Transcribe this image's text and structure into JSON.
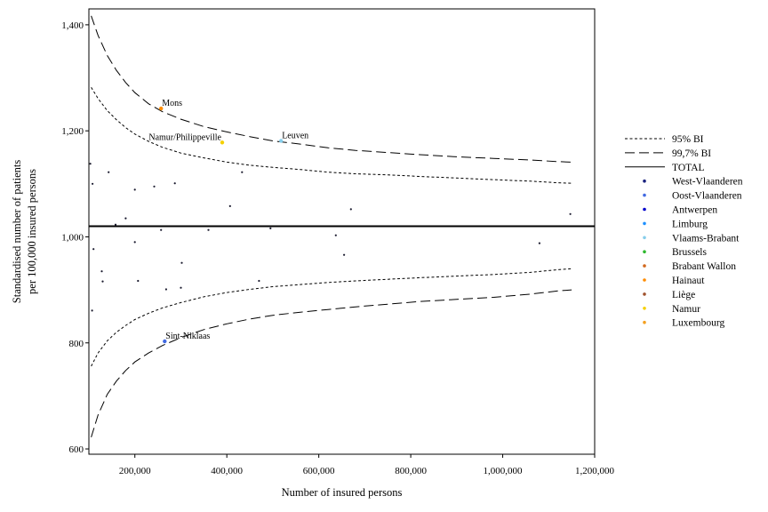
{
  "chart_data": {
    "type": "scatter",
    "title": "",
    "xlabel": "Number of insured persons",
    "ylabel_lines": [
      "Standardised number of patients",
      "per 100,000 insured persons"
    ],
    "xlim": [
      100000,
      1200000
    ],
    "ylim": [
      590,
      1430
    ],
    "x_ticks": [
      {
        "value": 200000,
        "label": "200,000"
      },
      {
        "value": 400000,
        "label": "400,000"
      },
      {
        "value": 600000,
        "label": "600,000"
      },
      {
        "value": 800000,
        "label": "800,000"
      },
      {
        "value": 1000000,
        "label": "1,000,000"
      },
      {
        "value": 1200000,
        "label": "1,200,000"
      }
    ],
    "y_ticks": [
      {
        "value": 600,
        "label": "600"
      },
      {
        "value": 800,
        "label": "800"
      },
      {
        "value": 1000,
        "label": "1,000"
      },
      {
        "value": 1200,
        "label": "1,200"
      },
      {
        "value": 1400,
        "label": "1,400"
      }
    ],
    "total": 1020,
    "curve_x": [
      105000,
      120000,
      140000,
      160000,
      180000,
      200000,
      230000,
      260000,
      300000,
      350000,
      400000,
      450000,
      500000,
      560000,
      620000,
      680000,
      750000,
      820000,
      900000,
      980000,
      1060000,
      1120000,
      1150000
    ],
    "ci95_upper": [
      1282,
      1261,
      1238,
      1221,
      1206,
      1194,
      1180,
      1169,
      1158,
      1149,
      1141,
      1135,
      1131,
      1127,
      1122,
      1119,
      1117,
      1114,
      1111,
      1108,
      1105,
      1102,
      1101
    ],
    "ci95_lower": [
      756,
      781,
      804,
      820,
      833,
      844,
      856,
      866,
      876,
      887,
      895,
      901,
      906,
      910,
      914,
      917,
      920,
      923,
      926,
      929,
      933,
      938,
      940
    ],
    "ci997_upper": [
      1417,
      1380,
      1342,
      1314,
      1291,
      1272,
      1251,
      1236,
      1222,
      1208,
      1198,
      1189,
      1181,
      1175,
      1168,
      1163,
      1159,
      1155,
      1151,
      1148,
      1145,
      1142,
      1141
    ],
    "ci997_lower": [
      622,
      664,
      703,
      728,
      748,
      764,
      781,
      795,
      810,
      825,
      836,
      845,
      852,
      858,
      863,
      868,
      873,
      878,
      882,
      886,
      892,
      898,
      900
    ],
    "legend_position": "right",
    "legend": [
      {
        "label": "95% BI",
        "kind": "line",
        "style": "short-dash"
      },
      {
        "label": "99,7% BI",
        "kind": "line",
        "style": "long-dash"
      },
      {
        "label": "TOTAL",
        "kind": "line",
        "style": "solid"
      },
      {
        "label": "West-Vlaanderen",
        "kind": "dot",
        "color": "#1a237e"
      },
      {
        "label": "Oost-Vlaanderen",
        "kind": "dot",
        "color": "#4169e1"
      },
      {
        "label": "Antwerpen",
        "kind": "dot",
        "color": "#0000cd"
      },
      {
        "label": "Limburg",
        "kind": "dot",
        "color": "#1e90ff"
      },
      {
        "label": "Vlaams-Brabant",
        "kind": "dot",
        "color": "#87ceeb"
      },
      {
        "label": "Brussels",
        "kind": "dot",
        "color": "#2eb82e"
      },
      {
        "label": "Brabant Wallon",
        "kind": "dot",
        "color": "#d2691e"
      },
      {
        "label": "Hainaut",
        "kind": "dot",
        "color": "#ff8c00"
      },
      {
        "label": "Liège",
        "kind": "dot",
        "color": "#a0522d"
      },
      {
        "label": "Namur",
        "kind": "dot",
        "color": "#f5d000"
      },
      {
        "label": "Luxembourg",
        "kind": "dot",
        "color": "#f4a020"
      }
    ],
    "labeled_points": [
      {
        "x": 257000,
        "y": 1242,
        "label": "Mons",
        "color": "#ff8c00",
        "anchor": "start"
      },
      {
        "x": 390000,
        "y": 1178,
        "label": "Namur/Philippeville",
        "color": "#f5d000",
        "anchor": "end"
      },
      {
        "x": 518000,
        "y": 1181,
        "label": "Leuven",
        "color": "#87ceeb",
        "anchor": "start"
      },
      {
        "x": 265000,
        "y": 803,
        "label": "Sint-Niklaas",
        "color": "#4169e1",
        "anchor": "start"
      }
    ],
    "other_points": [
      [
        103000,
        1138
      ],
      [
        108000,
        1100
      ],
      [
        143000,
        1122
      ],
      [
        200000,
        1089
      ],
      [
        242000,
        1095
      ],
      [
        287000,
        1101
      ],
      [
        433000,
        1122
      ],
      [
        407000,
        1058
      ],
      [
        670000,
        1052
      ],
      [
        158000,
        1023
      ],
      [
        180000,
        1035
      ],
      [
        257000,
        1013
      ],
      [
        360000,
        1013
      ],
      [
        495000,
        1016
      ],
      [
        637000,
        1003
      ],
      [
        1147000,
        1043
      ],
      [
        110000,
        977
      ],
      [
        200000,
        990
      ],
      [
        1080000,
        988
      ],
      [
        655000,
        966
      ],
      [
        128000,
        935
      ],
      [
        130000,
        916
      ],
      [
        302000,
        951
      ],
      [
        207000,
        917
      ],
      [
        470000,
        917
      ],
      [
        268000,
        901
      ],
      [
        300000,
        904
      ],
      [
        107000,
        861
      ]
    ],
    "point_color": "#1a1a2e"
  }
}
